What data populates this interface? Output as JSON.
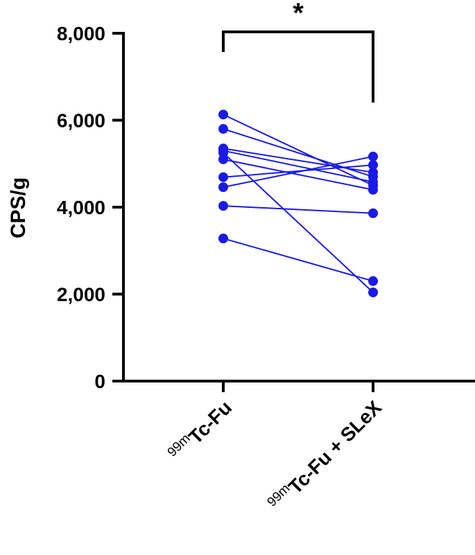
{
  "chart_data": {
    "type": "paired-line",
    "ylabel": "CPS/g",
    "categories": [
      {
        "sup": "99m",
        "text": "Tc-Fu"
      },
      {
        "sup": "99m",
        "text": "Tc-Fu + SLeX"
      }
    ],
    "color": "#1a1ae6",
    "series": [
      {
        "values": [
          6130,
          4500
        ]
      },
      {
        "values": [
          5800,
          4700
        ]
      },
      {
        "values": [
          5350,
          4800
        ]
      },
      {
        "values": [
          5300,
          4580
        ]
      },
      {
        "values": [
          5250,
          2040
        ]
      },
      {
        "values": [
          5100,
          4400
        ]
      },
      {
        "values": [
          4690,
          4970
        ]
      },
      {
        "values": [
          4460,
          5165
        ]
      },
      {
        "values": [
          4030,
          3860
        ]
      },
      {
        "values": [
          3280,
          2300
        ]
      }
    ],
    "ylim": [
      0,
      8000
    ],
    "yticks": [
      0,
      {
        "value": 2000,
        "label": "2,000"
      },
      {
        "value": 4000,
        "label": "4,000"
      },
      {
        "value": 6000,
        "label": "6,000"
      },
      {
        "value": 8000,
        "label": "8,000"
      }
    ],
    "significance": "*"
  }
}
